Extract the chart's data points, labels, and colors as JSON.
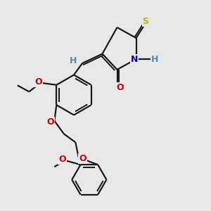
{
  "background_color": "#e8e8e8",
  "bond_color": "#1a1a1a",
  "bond_width": 1.6,
  "dbo": 0.08,
  "atom_colors": {
    "S_yellow": "#b8b800",
    "N": "#0000cc",
    "O": "#cc0000",
    "H_gray": "#5588aa",
    "C": "#1a1a1a"
  },
  "fig_width": 3.0,
  "fig_height": 3.0,
  "dpi": 100,
  "xlim": [
    0,
    10
  ],
  "ylim": [
    0,
    10
  ]
}
